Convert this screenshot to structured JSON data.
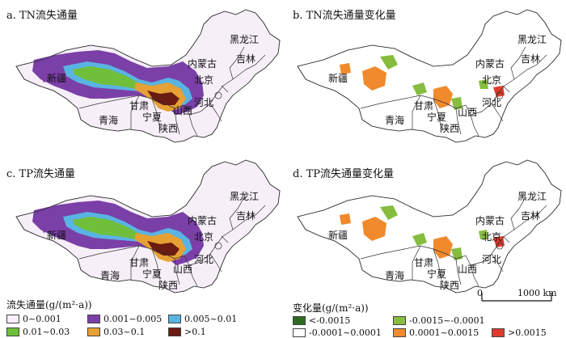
{
  "panels": [
    {
      "title": "a. TN流失通量"
    },
    {
      "title": "b. TN流失通量变化量"
    },
    {
      "title": "c. TP流失通量"
    },
    {
      "title": "d. TP流失通量变化量"
    }
  ],
  "province_labels": [
    "黑龙江",
    "吉林",
    "内蒙古",
    "新疆",
    "北京",
    "甘肃",
    "山西",
    "河北",
    "青海",
    "宁夏",
    "陕西"
  ],
  "legend_flux": {
    "title": "流失通量(g/(m²·a))",
    "items": [
      {
        "label": "0~0.001",
        "color": "#f6eff8"
      },
      {
        "label": "0.001~0.005",
        "color": "#7b3fa8"
      },
      {
        "label": "0.005~0.01",
        "color": "#5ab4e2"
      },
      {
        "label": "0.01~0.03",
        "color": "#6fbf3a"
      },
      {
        "label": "0.03~0.1",
        "color": "#e6a033"
      },
      {
        "label": ">0.1",
        "color": "#6a1b12"
      }
    ]
  },
  "legend_change": {
    "title": "变化量(g/(m²·a))",
    "items": [
      {
        "label": "<-0.0015",
        "color": "#2f6b1e"
      },
      {
        "label": "-0.0015~-0.0001",
        "color": "#86bd3e"
      },
      {
        "label": "-0.0001~0.0001",
        "color": "#ffffff"
      },
      {
        "label": "0.0001~0.0015",
        "color": "#f08a2c"
      },
      {
        "label": ">0.0015",
        "color": "#e03a2a"
      }
    ]
  },
  "scale_bar": {
    "start": "0",
    "end": "1000 km"
  }
}
